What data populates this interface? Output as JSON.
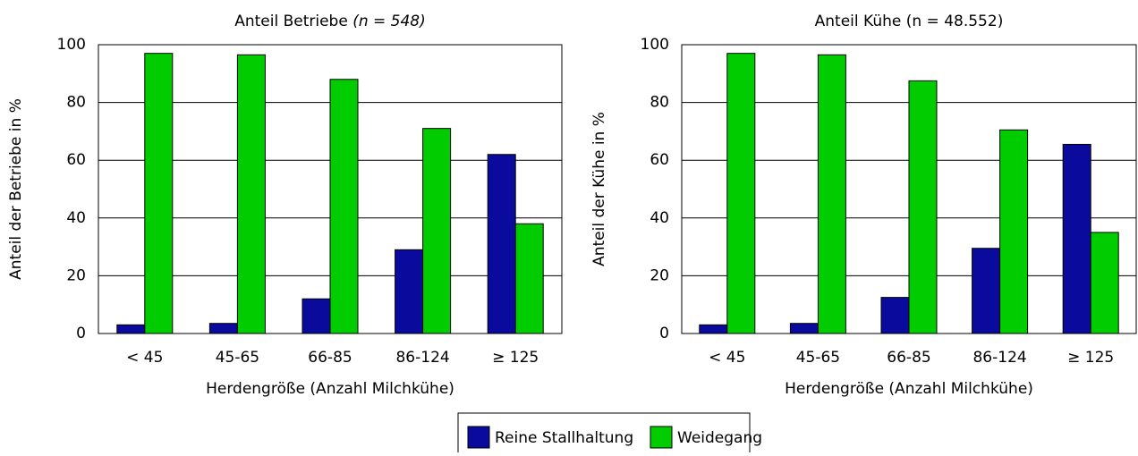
{
  "chart_data": [
    {
      "type": "bar",
      "title": "Anteil Betriebe",
      "title_note": "(n = 548)",
      "x_label": "Herdengröße (Anzahl Milchkühe)",
      "y_label": "Anteil der Betriebe in %",
      "categories": [
        "< 45",
        "45-65",
        "66-85",
        "86-124",
        "≥ 125"
      ],
      "series": [
        {
          "name": "Reine Stallhaltung",
          "color": "#0a0a9c",
          "values": [
            3,
            3.5,
            12,
            29,
            62
          ]
        },
        {
          "name": "Weidegang",
          "color": "#00cc00",
          "values": [
            97,
            96.5,
            88,
            71,
            38
          ]
        }
      ],
      "ylim": [
        0,
        100
      ],
      "yticks": [
        0,
        20,
        40,
        60,
        80,
        100
      ],
      "grid": true
    },
    {
      "type": "bar",
      "title": "Anteil Kühe (n = 48.552)",
      "x_label": "Herdengröße (Anzahl Milchkühe)",
      "y_label": "Anteil der Kühe in %",
      "categories": [
        "< 45",
        "45-65",
        "66-85",
        "86-124",
        "≥ 125"
      ],
      "series": [
        {
          "name": "Reine Stallhaltung",
          "color": "#0a0a9c",
          "values": [
            3,
            3.5,
            12.5,
            29.5,
            65.5
          ]
        },
        {
          "name": "Weidegang",
          "color": "#00cc00",
          "values": [
            97,
            96.5,
            87.5,
            70.5,
            35
          ]
        }
      ],
      "ylim": [
        0,
        100
      ],
      "yticks": [
        0,
        20,
        40,
        60,
        80,
        100
      ],
      "grid": true
    }
  ]
}
